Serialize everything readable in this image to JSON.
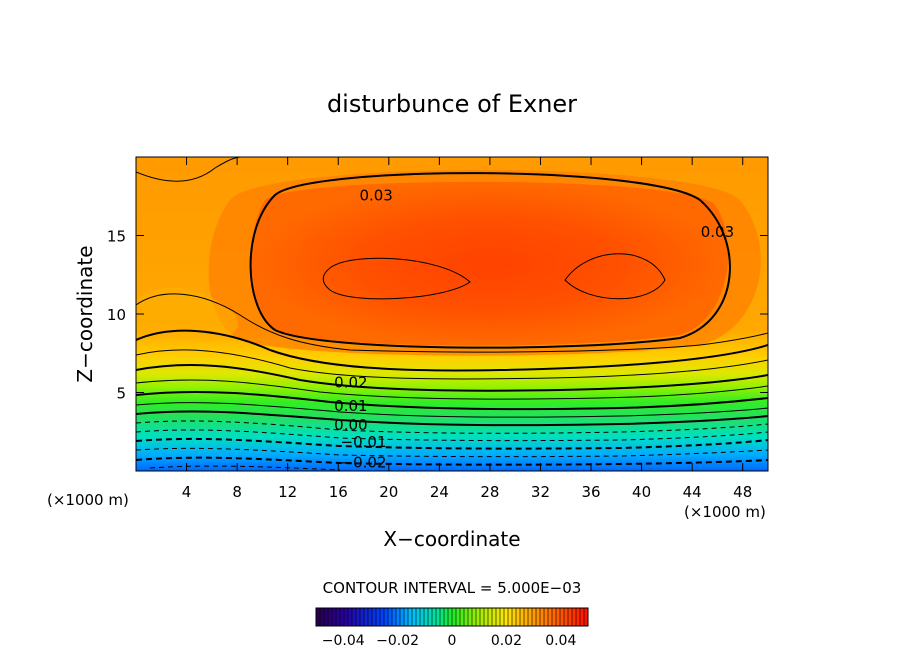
{
  "chart_data": {
    "type": "heatmap",
    "title": "disturbunce of Exner",
    "xlabel": "X−coordinate",
    "ylabel": "Z−coordinate",
    "x_unit_left": "(×1000 m)",
    "x_unit_right": "(×1000 m)",
    "xlim": [
      0,
      50
    ],
    "ylim": [
      0,
      20
    ],
    "x_ticks": [
      4,
      8,
      12,
      16,
      20,
      24,
      28,
      32,
      36,
      40,
      44,
      48
    ],
    "y_ticks": [
      5,
      10,
      15
    ],
    "contour_interval_text": "CONTOUR INTERVAL = 5.000E−03",
    "contour_interval": 0.005,
    "contour_labels": [
      {
        "text": "0.03",
        "x": 19,
        "z": 17.6
      },
      {
        "text": "0.03",
        "x": 46,
        "z": 15.3
      },
      {
        "text": "0.02",
        "x": 17,
        "z": 5.7
      },
      {
        "text": "0.01",
        "x": 17,
        "z": 4.2
      },
      {
        "text": "0.00",
        "x": 17,
        "z": 3.0
      },
      {
        "text": "−0.01",
        "x": 18,
        "z": 1.9
      },
      {
        "text": "−0.02",
        "x": 18,
        "z": 0.6
      }
    ],
    "colorbar": {
      "min": -0.05,
      "max": 0.05,
      "tick_labels": [
        "−0.04",
        "−0.02",
        "0",
        "0.02",
        "0.04"
      ],
      "tick_values": [
        -0.04,
        -0.02,
        0,
        0.02,
        0.04
      ]
    },
    "field_description_values": {
      "top_band_value": 0.027,
      "max_core_value": 0.037,
      "core_centers_x": [
        20,
        37
      ],
      "core_center_z": 12,
      "bottom_value": -0.03
    },
    "colors": {
      "negative_end": "#3a0a6a",
      "zero": "#22ee22",
      "positive_end": "#ff2000"
    }
  }
}
